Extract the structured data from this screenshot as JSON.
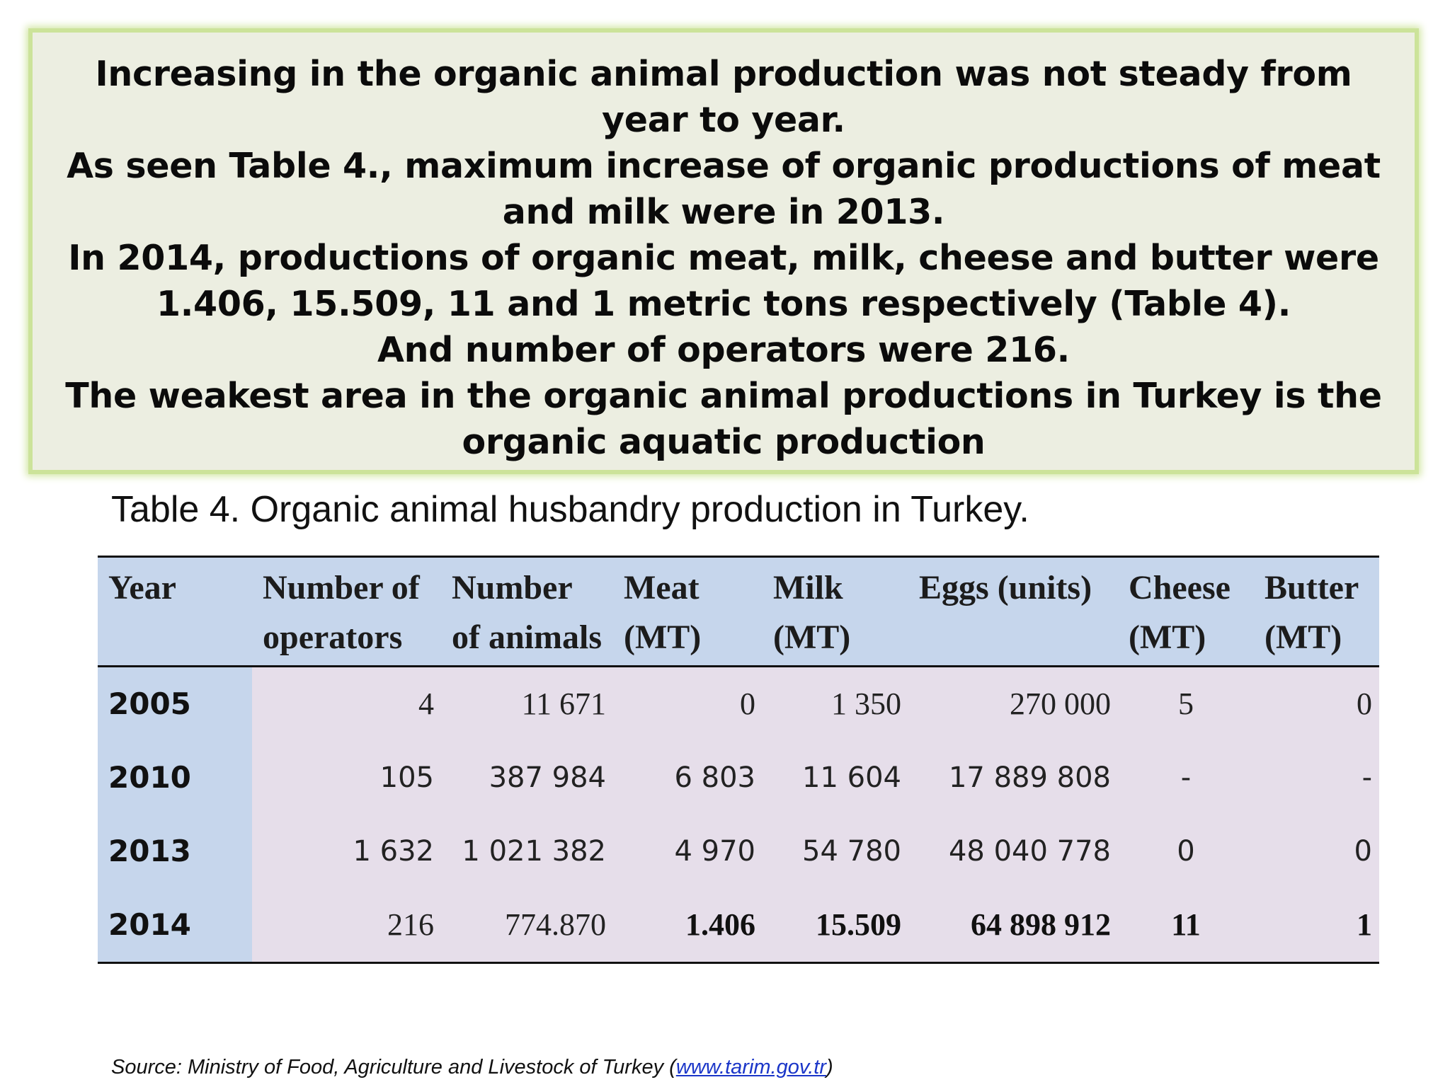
{
  "textbox": {
    "paragraphs": [
      "Increasing in the organic animal production was not steady  from year to year.",
      "As seen Table 4., maximum increase of organic productions of meat and milk were in 2013.",
      "In 2014, productions of organic meat, milk, cheese and butter were 1.406, 15.509, 11 and 1 metric tons respectively (Table 4).",
      "And number of operators were 216.",
      "The weakest area in the organic animal productions in Turkey is the organic aquatic production"
    ]
  },
  "caption": "Table 4. Organic animal husbandry production in Turkey.",
  "table": {
    "headers": [
      "Year",
      "Number of operators",
      "Number of animals",
      "Meat (MT)",
      "Milk (MT)",
      "Eggs (units)",
      "Cheese (MT)",
      "Butter (MT)"
    ],
    "rows": [
      {
        "year": "2005",
        "operators": "4",
        "animals": "11 671",
        "meat": "0",
        "milk": "1 350",
        "eggs": "270 000",
        "cheese": "5",
        "butter": "0"
      },
      {
        "year": "2010",
        "operators": "105",
        "animals": "387 984",
        "meat": "6 803",
        "milk": "11 604",
        "eggs": "17 889 808",
        "cheese": "-",
        "butter": "-"
      },
      {
        "year": "2013",
        "operators": "1 632",
        "animals": "1 021 382",
        "meat": "4 970",
        "milk": "54 780",
        "eggs": "48 040 778",
        "cheese": "0",
        "butter": "0"
      },
      {
        "year": "2014",
        "operators": "216",
        "animals": "774.870",
        "meat": "1.406",
        "milk": "15.509",
        "eggs": "64 898 912",
        "cheese": "11",
        "butter": "1"
      }
    ]
  },
  "source": {
    "prefix": "Source: Ministry of Food, Agriculture and Livestock of Turkey (",
    "link": "www.tarim.gov.tr",
    "suffix": ")"
  },
  "colors": {
    "textbox_background": "#eceee1",
    "textbox_border": "#cce39a",
    "table_header": "#c6d6ec",
    "table_body": "#e6deea",
    "link": "#1a35c8"
  }
}
